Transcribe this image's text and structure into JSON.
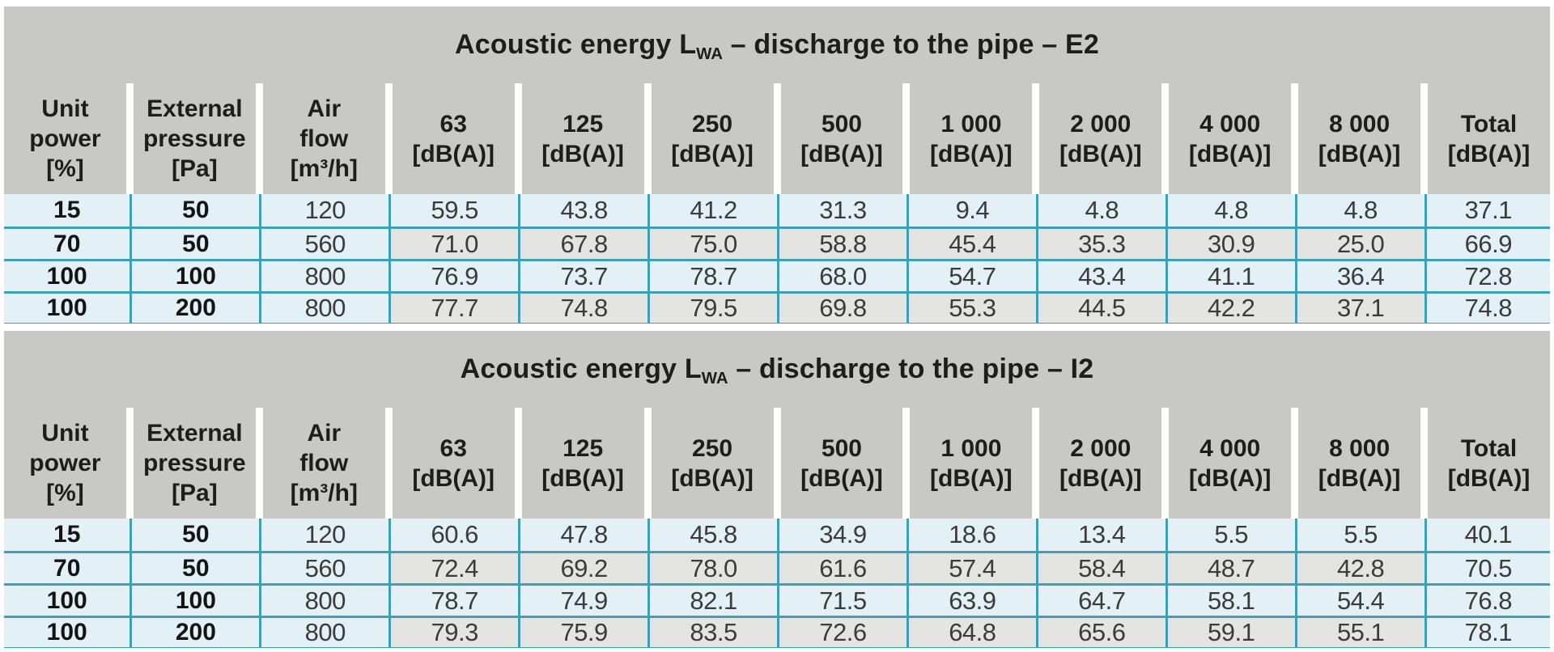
{
  "colors": {
    "band_gray": "#c8c8c7",
    "cell_gray": "#e4e4e3",
    "cell_blue": "#e3f1f7",
    "border_teal": "#3fa0b5",
    "text_dark": "#1d1d1b",
    "text_value": "#3b3b3b"
  },
  "columns": [
    {
      "id": "unit-power",
      "lines": [
        "Unit",
        "power",
        "[%]"
      ]
    },
    {
      "id": "external-pressure",
      "lines": [
        "External",
        "pressure",
        "[Pa]"
      ]
    },
    {
      "id": "air-flow",
      "lines": [
        "Air",
        "flow",
        "[m³/h]"
      ]
    },
    {
      "id": "freq-63",
      "lines": [
        "63",
        "[dB(A)]"
      ]
    },
    {
      "id": "freq-125",
      "lines": [
        "125",
        "[dB(A)]"
      ]
    },
    {
      "id": "freq-250",
      "lines": [
        "250",
        "[dB(A)]"
      ]
    },
    {
      "id": "freq-500",
      "lines": [
        "500",
        "[dB(A)]"
      ]
    },
    {
      "id": "freq-1000",
      "lines": [
        "1 000",
        "[dB(A)]"
      ]
    },
    {
      "id": "freq-2000",
      "lines": [
        "2 000",
        "[dB(A)]"
      ]
    },
    {
      "id": "freq-4000",
      "lines": [
        "4 000",
        "[dB(A)]"
      ]
    },
    {
      "id": "freq-8000",
      "lines": [
        "8 000",
        "[dB(A)]"
      ]
    },
    {
      "id": "total",
      "lines": [
        "Total",
        "[dB(A)]"
      ]
    }
  ],
  "tables": [
    {
      "name": "E2",
      "title": {
        "text_main": "Acoustic energy L",
        "subscript": "WA",
        "text_rest": " – discharge to the pipe – E2"
      },
      "rows": [
        {
          "cells": [
            "15",
            "50",
            "120",
            "59.5",
            "43.8",
            "41.2",
            "31.3",
            "9.4",
            "4.8",
            "4.8",
            "4.8",
            "37.1"
          ]
        },
        {
          "cells": [
            "70",
            "50",
            "560",
            "71.0",
            "67.8",
            "75.0",
            "58.8",
            "45.4",
            "35.3",
            "30.9",
            "25.0",
            "66.9"
          ]
        },
        {
          "cells": [
            "100",
            "100",
            "800",
            "76.9",
            "73.7",
            "78.7",
            "68.0",
            "54.7",
            "43.4",
            "41.1",
            "36.4",
            "72.8"
          ]
        },
        {
          "cells": [
            "100",
            "200",
            "800",
            "77.7",
            "74.8",
            "79.5",
            "69.8",
            "55.3",
            "44.5",
            "42.2",
            "37.1",
            "74.8"
          ]
        }
      ]
    },
    {
      "name": "I2",
      "title": {
        "text_main": "Acoustic energy L",
        "subscript": "WA",
        "text_rest": " – discharge to the pipe – I2"
      },
      "rows": [
        {
          "cells": [
            "15",
            "50",
            "120",
            "60.6",
            "47.8",
            "45.8",
            "34.9",
            "18.6",
            "13.4",
            "5.5",
            "5.5",
            "40.1"
          ]
        },
        {
          "cells": [
            "70",
            "50",
            "560",
            "72.4",
            "69.2",
            "78.0",
            "61.6",
            "57.4",
            "58.4",
            "48.7",
            "42.8",
            "70.5"
          ]
        },
        {
          "cells": [
            "100",
            "100",
            "800",
            "78.7",
            "74.9",
            "82.1",
            "71.5",
            "63.9",
            "64.7",
            "58.1",
            "54.4",
            "76.8"
          ]
        },
        {
          "cells": [
            "100",
            "200",
            "800",
            "79.3",
            "75.9",
            "83.5",
            "72.6",
            "64.8",
            "65.6",
            "59.1",
            "55.1",
            "78.1"
          ]
        }
      ]
    }
  ]
}
